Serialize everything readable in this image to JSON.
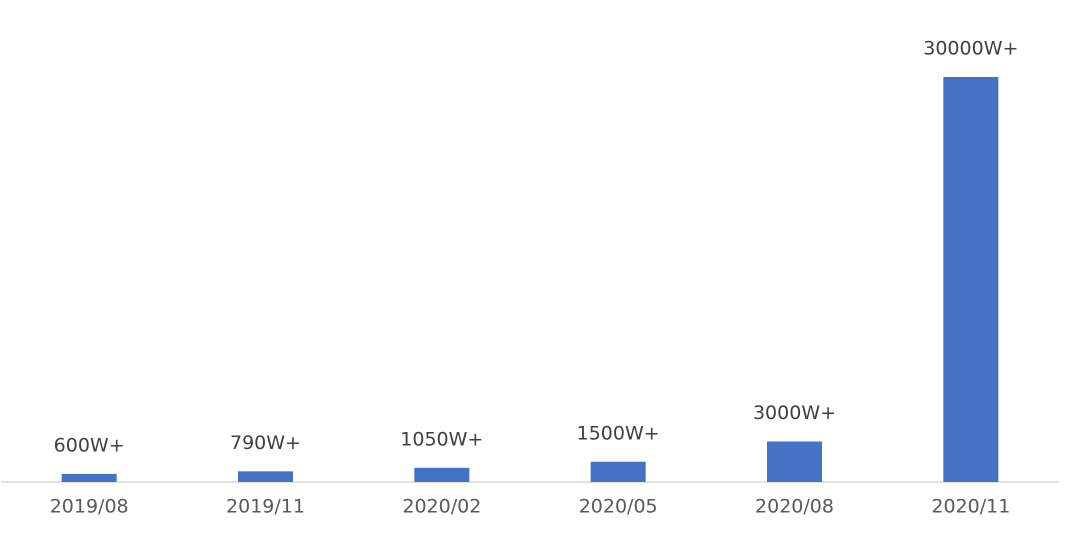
{
  "chart_data": {
    "type": "bar",
    "categories": [
      "2019/08",
      "2019/11",
      "2020/02",
      "2020/05",
      "2020/08",
      "2020/11"
    ],
    "values": [
      600,
      790,
      1050,
      1500,
      3000,
      30000
    ],
    "value_labels": [
      "600W+",
      "790W+",
      "1050W+",
      "1500W+",
      "3000W+",
      "30000W+"
    ],
    "color": "#4472c4"
  }
}
